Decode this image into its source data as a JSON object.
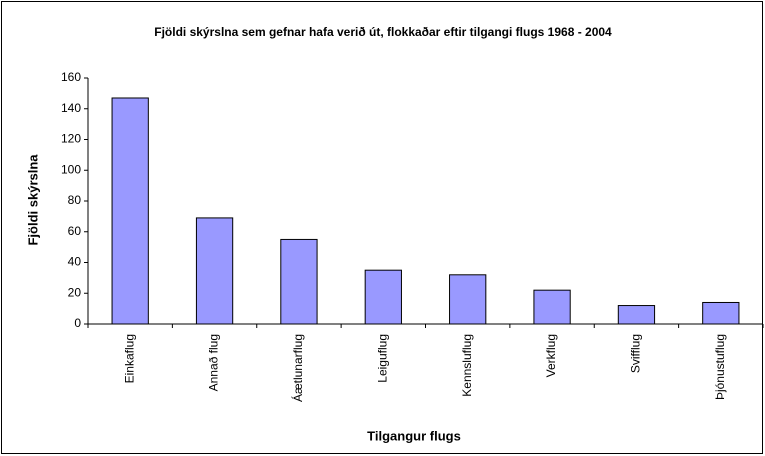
{
  "chart_data": {
    "type": "bar",
    "title": "Fjöldi skýrslna sem gefnar hafa verið út, flokkaðar eftir tilgangi flugs 1968 - 2004",
    "x_label": "Tilgangur flugs",
    "y_label": "Fjöldi skýrslna",
    "categories": [
      "Einkaflug",
      "Annað flug",
      "Áætlunarflug",
      "Leiguflug",
      "Kennsluflug",
      "Verkflug",
      "Svifflug",
      "Þjónustuflug"
    ],
    "values": [
      147,
      69,
      55,
      35,
      32,
      22,
      12,
      14
    ],
    "color": "#9999ff",
    "ylim": [
      0,
      160
    ],
    "yticks": [
      0,
      20,
      40,
      60,
      80,
      100,
      120,
      140,
      160
    ],
    "grid": false
  }
}
